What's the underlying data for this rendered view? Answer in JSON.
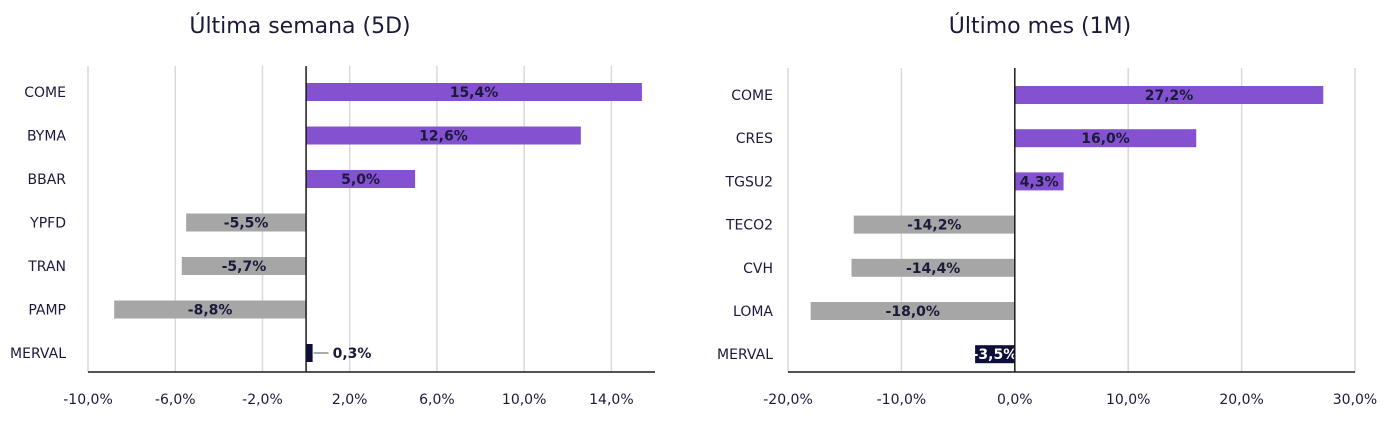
{
  "chart_data": [
    {
      "type": "bar",
      "orientation": "horizontal",
      "title": "Última semana (5D)",
      "categories": [
        "COME",
        "BYMA",
        "BBAR",
        "YPFD",
        "TRAN",
        "PAMP",
        "MERVAL"
      ],
      "values": [
        15.4,
        12.6,
        5.0,
        -5.5,
        -5.7,
        -8.8,
        0.3
      ],
      "data_labels": [
        "15,4%",
        "12,6%",
        "5,0%",
        "-5,5%",
        "-5,7%",
        "-8,8%",
        "0,3%"
      ],
      "xlim": [
        -10,
        16
      ],
      "ticks": [
        -10,
        -6,
        -2,
        2,
        6,
        10,
        14
      ],
      "tick_labels": [
        "-10,0%",
        "-6,0%",
        "-2,0%",
        "2,0%",
        "6,0%",
        "10,0%",
        "14,0%"
      ],
      "grid": true,
      "colors": {
        "positive": "#8452d1",
        "negative": "#a6a6a6",
        "index": "#0e0e3a",
        "label": "#1a1a3a"
      }
    },
    {
      "type": "bar",
      "orientation": "horizontal",
      "title": "Último mes (1M)",
      "categories": [
        "COME",
        "CRES",
        "TGSU2",
        "TECO2",
        "CVH",
        "LOMA",
        "MERVAL"
      ],
      "values": [
        27.2,
        16.0,
        4.3,
        -14.2,
        -14.4,
        -18.0,
        -3.5
      ],
      "data_labels": [
        "27,2%",
        "16,0%",
        "4,3%",
        "-14,2%",
        "-14,4%",
        "-18,0%",
        "-3,5%"
      ],
      "xlim": [
        -20,
        30
      ],
      "ticks": [
        -20,
        -10,
        0,
        10,
        20,
        30
      ],
      "tick_labels": [
        "-20,0%",
        "-10,0%",
        "0,0%",
        "10,0%",
        "20,0%",
        "30,0%"
      ],
      "grid": true,
      "colors": {
        "positive": "#8452d1",
        "negative": "#a6a6a6",
        "index": "#0e0e3a",
        "label": "#1a1a3a"
      }
    }
  ]
}
